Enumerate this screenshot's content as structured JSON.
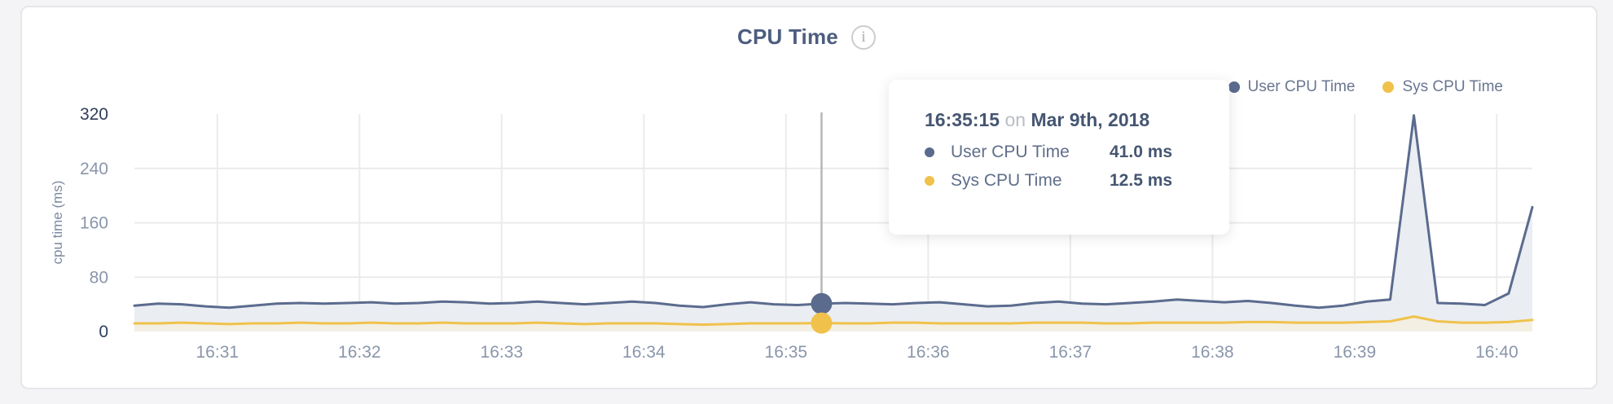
{
  "card": {
    "title": "CPU Time"
  },
  "legend": [
    {
      "label": "User CPU Time",
      "color": "#5b6b8e"
    },
    {
      "label": "Sys CPU Time",
      "color": "#f0c24b"
    }
  ],
  "axes": {
    "y_label": "cpu time (ms)",
    "y_ticks": [
      0,
      80,
      160,
      240,
      320
    ],
    "y_dark_ticks": [
      0,
      320
    ],
    "y_gridlines": [
      80,
      160,
      240
    ],
    "x_ticks": [
      "16:31",
      "16:32",
      "16:33",
      "16:34",
      "16:35",
      "16:36",
      "16:37",
      "16:38",
      "16:39",
      "16:40"
    ]
  },
  "tooltip": {
    "time": "16:35:15",
    "on_word": "on",
    "date": "Mar 9th, 2018",
    "rows": [
      {
        "label": "User CPU Time",
        "value": "41.0 ms"
      },
      {
        "label": "Sys CPU Time",
        "value": "12.5 ms"
      }
    ]
  },
  "chart_data": {
    "type": "area",
    "title": "CPU Time",
    "ylabel": "cpu time (ms)",
    "ylim": [
      0,
      320
    ],
    "grid": true,
    "legend_position": "top-right",
    "x_start": "16:30:25",
    "x_step_seconds": 10,
    "x_axis_ticks": [
      "16:31",
      "16:32",
      "16:33",
      "16:34",
      "16:35",
      "16:36",
      "16:37",
      "16:38",
      "16:39",
      "16:40"
    ],
    "series": [
      {
        "name": "User CPU Time",
        "color": "#5b6b8e",
        "fill": "#eaedf2",
        "values": [
          38,
          41,
          40,
          37,
          35,
          38,
          41,
          42,
          41,
          42,
          43,
          41,
          42,
          44,
          43,
          41,
          42,
          44,
          42,
          40,
          42,
          44,
          42,
          38,
          36,
          40,
          43,
          40,
          39,
          41,
          42,
          41,
          40,
          42,
          43,
          40,
          37,
          38,
          42,
          44,
          41,
          40,
          42,
          44,
          47,
          45,
          43,
          45,
          42,
          38,
          35,
          38,
          44,
          47,
          318,
          42,
          41,
          39,
          56,
          183
        ]
      },
      {
        "name": "Sys CPU Time",
        "color": "#f0c24b",
        "fill": "#f3efe3",
        "values": [
          12,
          12,
          13,
          12,
          11,
          12,
          12,
          13,
          12,
          12,
          13,
          12,
          12,
          13,
          12,
          12,
          12,
          13,
          12,
          11,
          12,
          12,
          12,
          11,
          10,
          11,
          12,
          12,
          12,
          12.5,
          12,
          12,
          13,
          13,
          12,
          12,
          12,
          12,
          13,
          13,
          13,
          12,
          12,
          13,
          13,
          13,
          13,
          14,
          14,
          13,
          13,
          13,
          14,
          15,
          22,
          15,
          13,
          13,
          14,
          17
        ]
      }
    ],
    "highlight": {
      "index": 29,
      "time": "16:35:15",
      "date": "Mar 9th, 2018",
      "user_ms": 41.0,
      "sys_ms": 12.5,
      "crosshair_color": "#b7b7b7"
    },
    "gridline_color": "#ebebeb",
    "tick_color_light": "#8a96ab",
    "tick_color_dark": "#2f3f5c"
  }
}
